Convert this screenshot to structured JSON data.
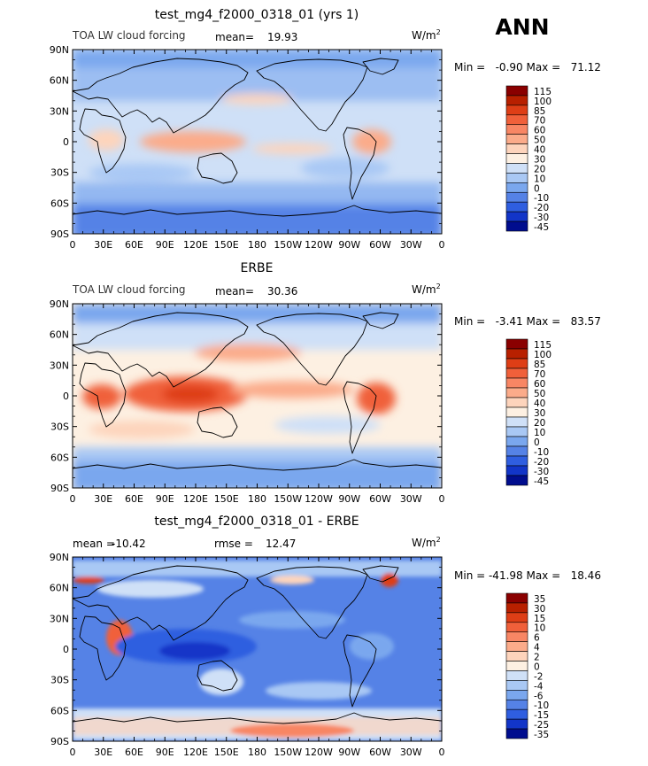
{
  "header": {
    "season": "ANN"
  },
  "panels": [
    {
      "title": "test_mg4_f2000_0318_01 (yrs 1)",
      "left_label": "TOA LW cloud forcing",
      "stat1": "mean=",
      "stat1_value": "19.93",
      "stat2": "",
      "stat2_value": "",
      "units": "W/m",
      "units_exp": "2",
      "min_max": "Min =   -0.90 Max =   71.12",
      "colorbar": [
        "115",
        "100",
        "85",
        "70",
        "60",
        "50",
        "40",
        "30",
        "20",
        "10",
        "0",
        "-10",
        "-20",
        "-30",
        "-45"
      ]
    },
    {
      "title": "ERBE",
      "left_label": "TOA LW cloud forcing",
      "stat1": "mean=",
      "stat1_value": "30.36",
      "stat2": "",
      "stat2_value": "",
      "units": "W/m",
      "units_exp": "2",
      "min_max": "Min =   -3.41 Max =   83.57",
      "colorbar": [
        "115",
        "100",
        "85",
        "70",
        "60",
        "50",
        "40",
        "30",
        "20",
        "10",
        "0",
        "-10",
        "-20",
        "-30",
        "-45"
      ]
    },
    {
      "title": "test_mg4_f2000_0318_01 - ERBE",
      "left_label": "",
      "stat1": "mean =",
      "stat1_value": "-10.42",
      "stat2": "rmse =",
      "stat2_value": "12.47",
      "units": "W/m",
      "units_exp": "2",
      "min_max": "Min = -41.98 Max =   18.46",
      "colorbar": [
        "35",
        "30",
        "15",
        "10",
        "6",
        "4",
        "2",
        "0",
        "-2",
        "-4",
        "-6",
        "-10",
        "-15",
        "-25",
        "-35"
      ]
    }
  ],
  "chart_data": [
    {
      "type": "heatmap",
      "title": "test_mg4_f2000_0318_01 (yrs 1)",
      "variable": "TOA LW cloud forcing",
      "units": "W/m2",
      "mean": 19.93,
      "min": -0.9,
      "max": 71.12,
      "x_ticks": [
        "0",
        "30E",
        "60E",
        "90E",
        "120E",
        "150E",
        "180",
        "150W",
        "120W",
        "90W",
        "60W",
        "30W",
        "0"
      ],
      "y_ticks": [
        "90N",
        "60N",
        "30N",
        "0",
        "30S",
        "60S",
        "90S"
      ],
      "levels": [
        115,
        100,
        85,
        70,
        60,
        50,
        40,
        30,
        20,
        10,
        0,
        -10,
        -20,
        -30,
        -45
      ]
    },
    {
      "type": "heatmap",
      "title": "ERBE",
      "variable": "TOA LW cloud forcing",
      "units": "W/m2",
      "mean": 30.36,
      "min": -3.41,
      "max": 83.57,
      "x_ticks": [
        "0",
        "30E",
        "60E",
        "90E",
        "120E",
        "150E",
        "180",
        "150W",
        "120W",
        "90W",
        "60W",
        "30W",
        "0"
      ],
      "y_ticks": [
        "90N",
        "60N",
        "30N",
        "0",
        "30S",
        "60S",
        "90S"
      ],
      "levels": [
        115,
        100,
        85,
        70,
        60,
        50,
        40,
        30,
        20,
        10,
        0,
        -10,
        -20,
        -30,
        -45
      ]
    },
    {
      "type": "heatmap",
      "title": "test_mg4_f2000_0318_01 - ERBE",
      "variable": "difference",
      "units": "W/m2",
      "mean": -10.42,
      "rmse": 12.47,
      "min": -41.98,
      "max": 18.46,
      "x_ticks": [
        "0",
        "30E",
        "60E",
        "90E",
        "120E",
        "150E",
        "180",
        "150W",
        "120W",
        "90W",
        "60W",
        "30W",
        "0"
      ],
      "y_ticks": [
        "90N",
        "60N",
        "30N",
        "0",
        "30S",
        "60S",
        "90S"
      ],
      "levels": [
        35,
        30,
        15,
        10,
        6,
        4,
        2,
        0,
        -2,
        -4,
        -6,
        -10,
        -15,
        -25,
        -35
      ]
    }
  ],
  "colors": {
    "cb15": [
      "#8a0000",
      "#b82000",
      "#de3e16",
      "#f0603a",
      "#f88664",
      "#fbab8a",
      "#fdd4bc",
      "#fdf0e2",
      "#cfe0f7",
      "#a9c8f4",
      "#7aa7ee",
      "#5582e6",
      "#2f5ee0",
      "#1235c8",
      "#000d8e"
    ]
  }
}
